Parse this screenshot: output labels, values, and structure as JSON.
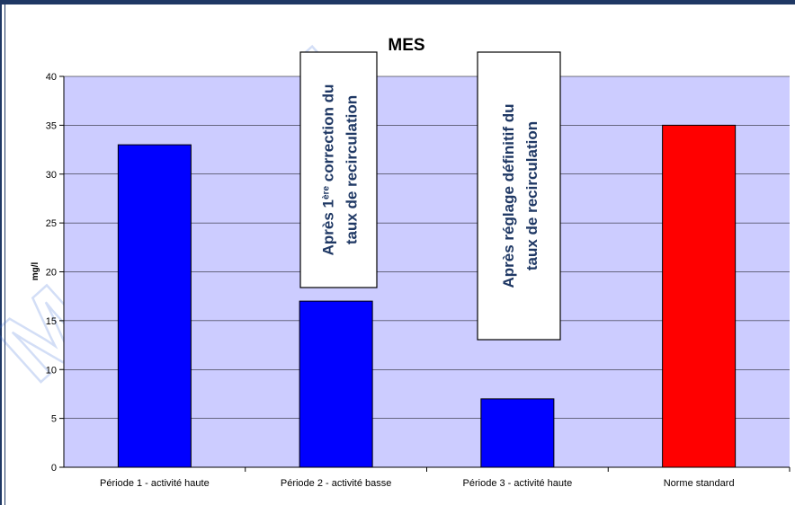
{
  "chart_data": {
    "type": "bar",
    "title": "MES",
    "ylabel": "mg/l",
    "xlabel": "",
    "categories": [
      "Période 1 - activité haute",
      "Période 2 - activité basse",
      "Période 3 - activité haute",
      "Norme standard"
    ],
    "values": [
      33,
      17,
      7,
      35
    ],
    "bar_colors": [
      "#0000ff",
      "#0000ff",
      "#0000ff",
      "#ff0000"
    ],
    "ylim": [
      0,
      40
    ],
    "yticks": [
      0,
      5,
      10,
      15,
      20,
      25,
      30,
      35,
      40
    ],
    "grid": true,
    "plot_background": "#ccccff",
    "annotations": [
      {
        "lines": [
          "Après 1ère correction du",
          "taux de recirculation"
        ]
      },
      {
        "lines": [
          "Après réglage définitif du",
          "taux de recirculation"
        ]
      }
    ]
  },
  "watermark": "MA CA AI",
  "colors": {
    "frame": "#1f3864",
    "grid": "#000000",
    "annotation_text": "#1f3864"
  }
}
